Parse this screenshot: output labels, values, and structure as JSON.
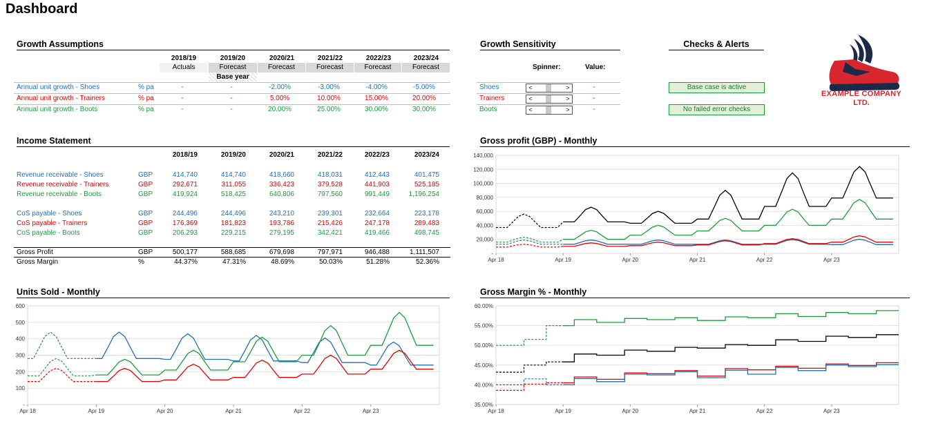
{
  "title": "Dashboard",
  "growth_assumptions": {
    "title": "Growth Assumptions",
    "years": [
      "2018/19",
      "2019/20",
      "2020/21",
      "2021/22",
      "2022/23",
      "2023/24"
    ],
    "year_types": [
      "Actuals",
      "Forecast",
      "Forecast",
      "Forecast",
      "Forecast",
      "Forecast"
    ],
    "base_year_label": "Base year",
    "rows": [
      {
        "label": "Annual unit growth - Shoes",
        "unit": "% pa",
        "values": [
          "-",
          "-",
          "-2.00%",
          "-3.00%",
          "-4.00%",
          "-5.00%"
        ]
      },
      {
        "label": "Annual unit growth - Trainers",
        "unit": "% pa",
        "values": [
          "-",
          "-",
          "5.00%",
          "10.00%",
          "15.00%",
          "20.00%"
        ]
      },
      {
        "label": "Annual unit growth - Boots",
        "unit": "% pa",
        "values": [
          "-",
          "-",
          "20.00%",
          "25.00%",
          "30.00%",
          "30.00%"
        ]
      }
    ]
  },
  "sensitivity": {
    "title": "Growth Sensitivity",
    "spinner_header": "Spinner:",
    "value_header": "Value:",
    "rows": [
      {
        "label": "Shoes",
        "value": "-"
      },
      {
        "label": "Trainers",
        "value": "-"
      },
      {
        "label": "Boots",
        "value": "-"
      }
    ],
    "left_arrow": "<",
    "right_arrow": ">"
  },
  "checks": {
    "title": "Checks & Alerts",
    "alerts": [
      "Base case is active",
      "No failed error checks"
    ]
  },
  "logo": {
    "line1": "EXAMPLE COMPANY",
    "line2": "LTD."
  },
  "income": {
    "title": "Income Statement",
    "years": [
      "2018/19",
      "2019/20",
      "2020/21",
      "2021/22",
      "2022/23",
      "2023/24"
    ],
    "revenue": [
      {
        "label": "Revenue receivable - Shoes",
        "unit": "GBP",
        "values": [
          "414,740",
          "414,740",
          "418,660",
          "418,031",
          "412,443",
          "401,475"
        ]
      },
      {
        "label": "Revenue receivable - Trainers",
        "unit": "GBP",
        "values": [
          "292,671",
          "311,055",
          "336,423",
          "379,528",
          "441,903",
          "525,185"
        ]
      },
      {
        "label": "Revenue receivable - Boots",
        "unit": "GBP",
        "values": [
          "419,924",
          "518,425",
          "640,806",
          "797,560",
          "991,449",
          "1,196,254"
        ]
      }
    ],
    "cos": [
      {
        "label": "CoS payable - Shoes",
        "unit": "GBP",
        "values": [
          "244,496",
          "244,496",
          "243,210",
          "239,301",
          "232,664",
          "223,178"
        ]
      },
      {
        "label": "CoS payable - Trainers",
        "unit": "GBP",
        "values": [
          "176,369",
          "181,823",
          "193,786",
          "215,426",
          "247,178",
          "289,483"
        ]
      },
      {
        "label": "CoS payable - Boots",
        "unit": "GBP",
        "values": [
          "206,293",
          "229,215",
          "279,195",
          "342,421",
          "419,466",
          "498,745"
        ]
      }
    ],
    "gross_profit": {
      "label": "Gross Profit",
      "unit": "GBP",
      "values": [
        "500,177",
        "588,685",
        "679,698",
        "797,971",
        "946,488",
        "1,111,507"
      ]
    },
    "gross_margin": {
      "label": "Gross Margin",
      "unit": "%",
      "values": [
        "44.37%",
        "47.31%",
        "48.69%",
        "50.03%",
        "51.28%",
        "52.36%"
      ]
    }
  },
  "colors": {
    "shoes": "#1f6fb8",
    "trainers": "#e60000",
    "boots": "#1a9c3c",
    "total": "#000000"
  },
  "chart_data": [
    {
      "id": "gross-profit",
      "type": "line",
      "title": "Gross profit (GBP) - Monthly",
      "x_labels": [
        "Apr 18",
        "Apr 19",
        "Apr 20",
        "Apr 21",
        "Apr 22",
        "Apr 23"
      ],
      "y_ticks": [
        "140,000",
        "120,000",
        "100,000",
        "80,000",
        "60,000",
        "40,000",
        "20,000",
        "-"
      ],
      "ylim": [
        0,
        140000
      ],
      "months": 72,
      "dashed_until_month": 12,
      "series": [
        {
          "name": "Total",
          "color": "#000000",
          "base": [
            37000,
            45000,
            43000,
            49000,
            67000,
            79000
          ],
          "peak": [
            56000,
            66000,
            60000,
            90000,
            115000,
            124000
          ]
        },
        {
          "name": "Boots",
          "color": "#1a9c3c",
          "base": [
            16000,
            20000,
            26000,
            32000,
            40000,
            49000
          ],
          "peak": [
            23000,
            33000,
            40000,
            50000,
            63000,
            77000
          ]
        },
        {
          "name": "Shoes",
          "color": "#1f6fb8",
          "base": [
            13000,
            13000,
            13000,
            13000,
            13000,
            12500
          ],
          "peak": [
            19000,
            19000,
            19000,
            19000,
            19500,
            20000
          ]
        },
        {
          "name": "Trainers",
          "color": "#e60000",
          "base": [
            9000,
            10000,
            11000,
            12000,
            14000,
            16000
          ],
          "peak": [
            13000,
            15000,
            16000,
            18000,
            21000,
            25000
          ]
        }
      ]
    },
    {
      "id": "units-sold",
      "type": "line",
      "title": "Units Sold - Monthly",
      "x_labels": [
        "Apr 18",
        "Apr 19",
        "Apr 20",
        "Apr 21",
        "Apr 22",
        "Apr 23"
      ],
      "y_ticks": [
        "600",
        "500",
        "400",
        "300",
        "200",
        "100",
        "-"
      ],
      "ylim": [
        0,
        600
      ],
      "months": 72,
      "dashed_until_month": 12,
      "series": [
        {
          "name": "Shoes",
          "color": "#1f6fb8",
          "base": [
            280,
            280,
            275,
            265,
            255,
            240
          ],
          "peak": [
            440,
            440,
            430,
            420,
            405,
            380
          ],
          "offset": -1
        },
        {
          "name": "Boots",
          "color": "#1a9c3c",
          "base": [
            175,
            180,
            210,
            260,
            300,
            360
          ],
          "peak": [
            280,
            275,
            330,
            410,
            480,
            560
          ],
          "offset": 0
        },
        {
          "name": "Trainers",
          "color": "#e60000",
          "base": [
            140,
            140,
            150,
            165,
            185,
            215
          ],
          "peak": [
            220,
            220,
            245,
            270,
            300,
            330
          ],
          "offset": 0
        }
      ]
    },
    {
      "id": "gross-margin",
      "type": "line",
      "title": "Gross Margin % - Monthly",
      "x_labels": [
        "Apr 18",
        "Apr 19",
        "Apr 20",
        "Apr 21",
        "Apr 22",
        "Apr 23"
      ],
      "y_ticks": [
        "60.00%",
        "55.00%",
        "50.00%",
        "45.00%",
        "40.00%",
        "35.00%"
      ],
      "ylim": [
        35,
        60
      ],
      "months": 72,
      "dashed_until_month": 12,
      "series": [
        {
          "name": "Boots",
          "color": "#1a9c3c",
          "steps": [
            50.0,
            51.5,
            55.0,
            56.5,
            55.8,
            56.8,
            56.5,
            57.0,
            56.3,
            57.2,
            57.0,
            58.0,
            57.3,
            58.3,
            58.0,
            58.8
          ]
        },
        {
          "name": "Total",
          "color": "#000000",
          "steps": [
            43.2,
            45.0,
            45.8,
            47.8,
            47.5,
            48.8,
            48.5,
            49.5,
            49.3,
            50.2,
            50.0,
            51.4,
            51.0,
            52.3,
            52.0,
            52.7
          ]
        },
        {
          "name": "Trainers",
          "color": "#e60000",
          "steps": [
            38.6,
            40.2,
            40.5,
            42.0,
            41.4,
            43.0,
            42.8,
            43.6,
            42.2,
            44.1,
            43.8,
            44.7,
            44.2,
            45.3,
            44.9,
            45.6
          ]
        },
        {
          "name": "Shoes",
          "color": "#1f6fb8",
          "steps": [
            40.0,
            41.5,
            40.0,
            41.6,
            40.8,
            42.7,
            42.5,
            43.3,
            41.8,
            43.7,
            42.7,
            44.4,
            43.6,
            45.0,
            44.6,
            45.1
          ]
        }
      ]
    }
  ]
}
